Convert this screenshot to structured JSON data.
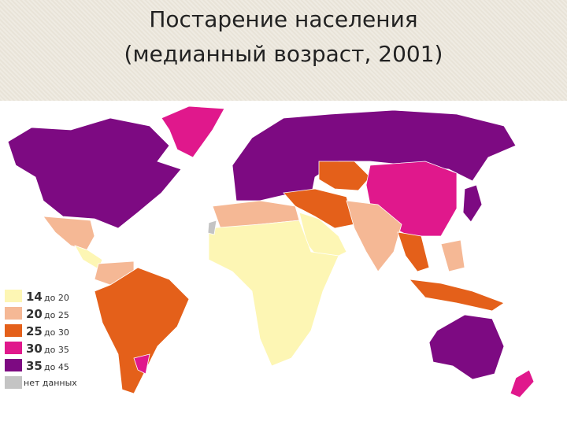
{
  "title": [
    "Постарение населения",
    "(медианный возраст, 2001)"
  ],
  "legend": [
    {
      "from": "14",
      "to": "до 20",
      "color": "#fdf6b4"
    },
    {
      "from": "20",
      "to": "до 25",
      "color": "#f5b895"
    },
    {
      "from": "25",
      "to": "до 30",
      "color": "#e4601a"
    },
    {
      "from": "30",
      "to": "до 35",
      "color": "#e0188c"
    },
    {
      "from": "35",
      "to": "до 45",
      "color": "#7d0a82"
    },
    {
      "label": "нет данных",
      "color": "#c4c4c4"
    }
  ]
}
